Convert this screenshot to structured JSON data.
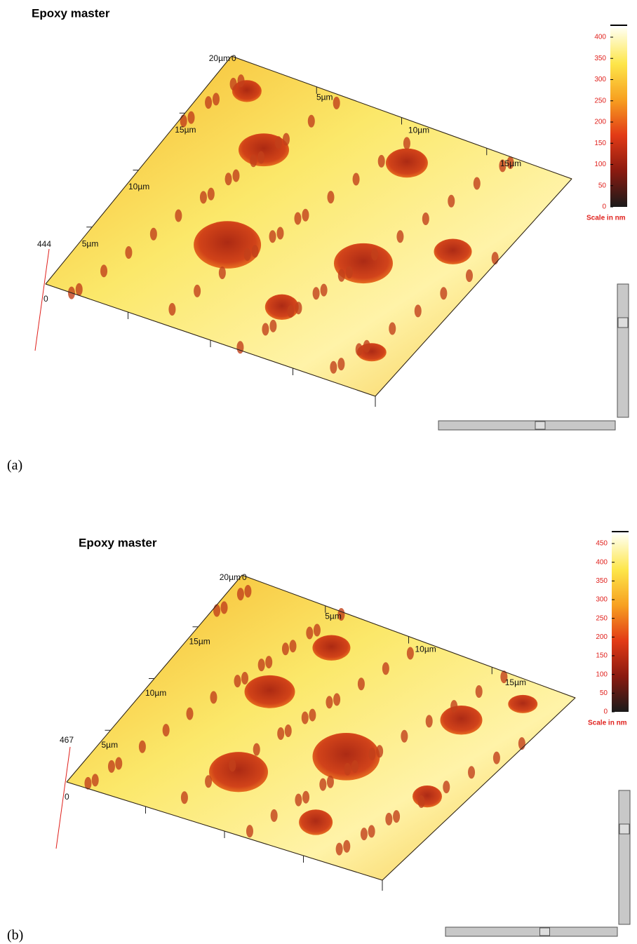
{
  "panels": [
    {
      "title": "Epoxy master",
      "label": "(a)",
      "z_max": "444",
      "origin": "0",
      "back_corner": [
        "20µm",
        "0"
      ],
      "back_edge": [
        "5µm",
        "10µm",
        "15µm"
      ],
      "left_edge": [
        "5µm",
        "10µm",
        "15µm"
      ],
      "colorbar": [
        "400",
        "350",
        "300",
        "250",
        "200",
        "150",
        "100",
        "50",
        "0"
      ],
      "scale_label": "Scale in nm"
    },
    {
      "title": "Epoxy master",
      "label": "(b)",
      "z_max": "467",
      "origin": "0",
      "back_corner": [
        "20µm",
        "0"
      ],
      "back_edge": [
        "5µm",
        "10µm",
        "15µm"
      ],
      "left_edge": [
        "5µm",
        "10µm",
        "15µm"
      ],
      "colorbar": [
        "450",
        "400",
        "350",
        "300",
        "250",
        "200",
        "150",
        "100",
        "50",
        "0"
      ],
      "scale_label": "Scale in nm"
    }
  ]
}
